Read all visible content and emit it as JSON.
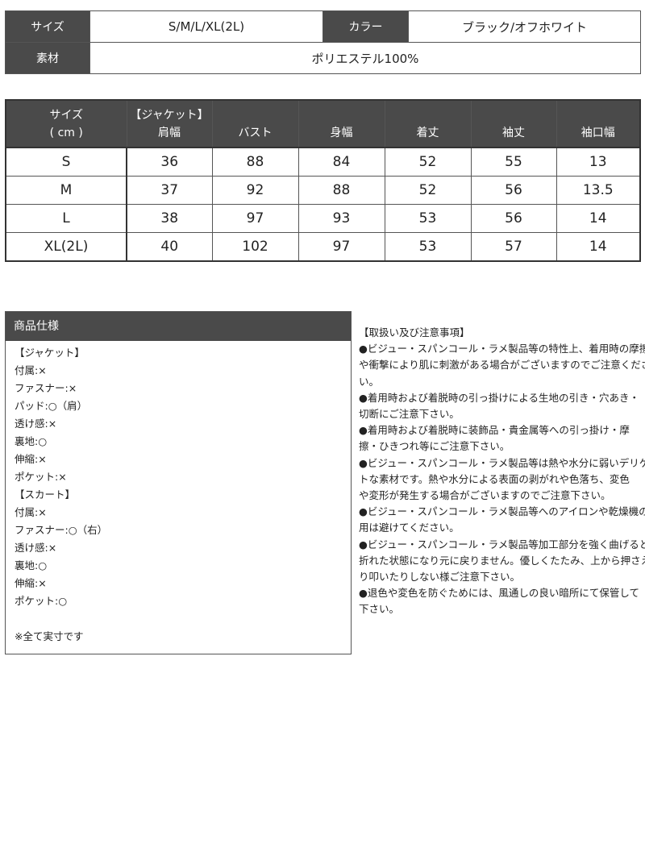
{
  "info": {
    "size_label": "サイズ",
    "size_value": "S/M/L/XL(2L)",
    "color_label": "カラー",
    "color_value": "ブラック/オフホワイト",
    "material_label": "素材",
    "material_value": "ポリエステル100%"
  },
  "size_table": {
    "headers": [
      [
        "サイズ",
        "( cm )"
      ],
      [
        "【ジャケット】",
        "肩幅"
      ],
      [
        "",
        "バスト"
      ],
      [
        "",
        "身幅"
      ],
      [
        "",
        "着丈"
      ],
      [
        "",
        "袖丈"
      ],
      [
        "",
        "袖口幅"
      ]
    ],
    "rows": [
      [
        "S",
        "36",
        "88",
        "84",
        "52",
        "55",
        "13"
      ],
      [
        "M",
        "37",
        "92",
        "88",
        "52",
        "56",
        "13.5"
      ],
      [
        "L",
        "38",
        "97",
        "93",
        "53",
        "56",
        "14"
      ],
      [
        "XL(2L)",
        "40",
        "102",
        "97",
        "53",
        "57",
        "14"
      ]
    ]
  },
  "spec": {
    "title": "商品仕様",
    "lines": [
      "【ジャケット】",
      "付属:×",
      "ファスナー:×",
      "パッド:○（肩）",
      "透け感:×",
      "裏地:○",
      "伸縮:×",
      "ポケット:×",
      "【スカート】",
      "付属:×",
      "ファスナー:○（右）",
      "透け感:×",
      "裏地:○",
      "伸縮:×",
      "ポケット:○",
      "",
      "※全て実寸です"
    ]
  },
  "notes": {
    "lines": [
      "【取扱い及び注意事項】",
      "●ビジュー・スパンコール・ラメ製品等の特性上、着用時の摩擦",
      "や衝撃により肌に刺激がある場合がございますのでご注意くださ",
      "い。",
      "●着用時および着脱時の引っ掛けによる生地の引き・穴あき・",
      "切断にご注意下さい。",
      "●着用時および着脱時に装飾品・貴金属等への引っ掛け・摩",
      "擦・ひきつれ等にご注意下さい。",
      "●ビジュー・スパンコール・ラメ製品等は熱や水分に弱いデリケー",
      "トな素材です。熱や水分による表面の剥がれや色落ち、変色",
      "や変形が発生する場合がございますのでご注意下さい。",
      "●ビジュー・スパンコール・ラメ製品等へのアイロンや乾燥機の使",
      "用は避けてください。",
      "●ビジュー・スパンコール・ラメ製品等加工部分を強く曲げると",
      "折れた状態になり元に戻りません。優しくたたみ、上から押さえた",
      "り叩いたりしない様ご注意下さい。",
      "●退色や変色を防ぐためには、風通しの良い暗所にて保管して",
      "下さい。"
    ]
  },
  "colors": {
    "header_bg": "#4a4a4a",
    "border": "#555555"
  }
}
